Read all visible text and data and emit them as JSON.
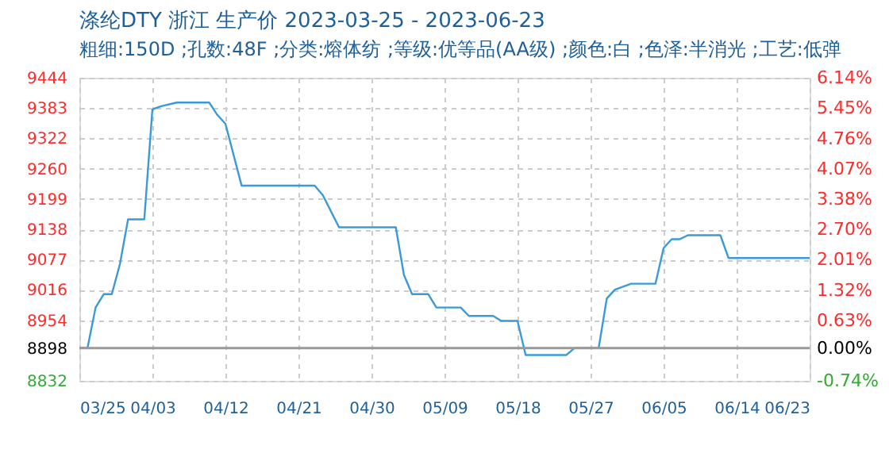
{
  "chart_data": {
    "type": "line",
    "title": "涤纶DTY 浙江 生产价 2023-03-25 - 2023-06-23",
    "subtitle": "粗细:150D ;孔数:48F ;分类:熔体纺 ;等级:优等品(AA级) ;颜色:白 ;色泽:半消光 ;工艺:低弹",
    "x": [
      "2023-03-25",
      "2023-03-26",
      "2023-03-27",
      "2023-03-28",
      "2023-03-29",
      "2023-03-30",
      "2023-03-31",
      "2023-04-02",
      "2023-04-03",
      "2023-04-04",
      "2023-04-06",
      "2023-04-10",
      "2023-04-11",
      "2023-04-12",
      "2023-04-14",
      "2023-04-23",
      "2023-04-24",
      "2023-04-26",
      "2023-05-03",
      "2023-05-04",
      "2023-05-05",
      "2023-05-07",
      "2023-05-08",
      "2023-05-11",
      "2023-05-12",
      "2023-05-15",
      "2023-05-16",
      "2023-05-18",
      "2023-05-19",
      "2023-05-24",
      "2023-05-25",
      "2023-05-28",
      "2023-05-29",
      "2023-05-30",
      "2023-06-01",
      "2023-06-04",
      "2023-06-05",
      "2023-06-06",
      "2023-06-07",
      "2023-06-08",
      "2023-06-12",
      "2023-06-13",
      "2023-06-23"
    ],
    "series": [
      {
        "color": "#3a9ad9",
        "values": [
          8898,
          8898,
          8980,
          9007,
          9007,
          9068,
          9158,
          9158,
          9380,
          9386,
          9394,
          9394,
          9369,
          9351,
          9226,
          9226,
          9207,
          9142,
          9142,
          9046,
          9007,
          9007,
          8980,
          8980,
          8963,
          8963,
          8953,
          8953,
          8884,
          8884,
          8898,
          8898,
          8998,
          9016,
          9028,
          9028,
          9100,
          9118,
          9118,
          9126,
          9126,
          9080,
          9080
        ]
      }
    ],
    "xlim": [
      "2023-03-25",
      "2023-06-23"
    ],
    "xticks": [
      {
        "value": "2023-03-25",
        "label": "03/25"
      },
      {
        "value": "2023-04-03",
        "label": "04/03"
      },
      {
        "value": "2023-04-12",
        "label": "04/12"
      },
      {
        "value": "2023-04-21",
        "label": "04/21"
      },
      {
        "value": "2023-04-30",
        "label": "04/30"
      },
      {
        "value": "2023-05-09",
        "label": "05/09"
      },
      {
        "value": "2023-05-18",
        "label": "05/18"
      },
      {
        "value": "2023-05-27",
        "label": "05/27"
      },
      {
        "value": "2023-06-05",
        "label": "06/05"
      },
      {
        "value": "2023-06-14",
        "label": "06/14"
      },
      {
        "value": "2023-06-23",
        "label": "06/23"
      }
    ],
    "ylim": [
      8832,
      9444
    ],
    "yticks": [
      8832,
      8898,
      8954,
      9016,
      9077,
      9138,
      9199,
      9260,
      9322,
      9383,
      9444
    ],
    "y2lim": [
      -0.74,
      6.14
    ],
    "y2ticks": [
      {
        "value": -0.74,
        "label": "-0.74%"
      },
      {
        "value": 0,
        "label": "0.00%"
      },
      {
        "value": 0.63,
        "label": "0.63%"
      },
      {
        "value": 1.32,
        "label": "1.32%"
      },
      {
        "value": 2.01,
        "label": "2.01%"
      },
      {
        "value": 2.7,
        "label": "2.70%"
      },
      {
        "value": 3.38,
        "label": "3.38%"
      },
      {
        "value": 4.07,
        "label": "4.07%"
      },
      {
        "value": 4.76,
        "label": "4.76%"
      },
      {
        "value": 5.45,
        "label": "5.45%"
      },
      {
        "value": 6.14,
        "label": "6.14%"
      }
    ],
    "ref_lines": [
      {
        "axis": "y",
        "value": 8898,
        "color": "#999999"
      }
    ],
    "grid": true,
    "legend": false,
    "marker": "none",
    "line_style": "solid"
  }
}
